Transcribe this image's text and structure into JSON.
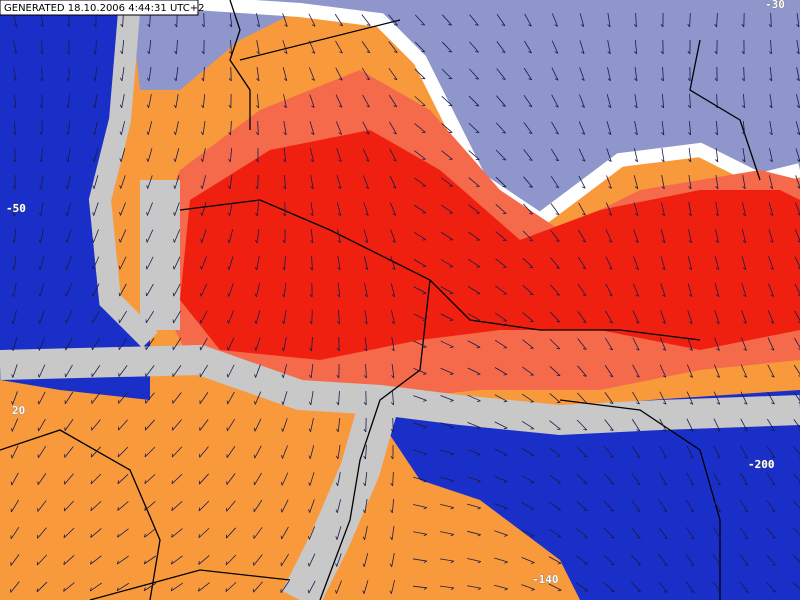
{
  "header": {
    "generated": "GENERATED 18.10.2006 4:44:31 UTC+2"
  },
  "contour_labels": [
    {
      "text": "-30"
    },
    {
      "text": "-50"
    },
    {
      "text": "20"
    },
    {
      "text": "-140"
    },
    {
      "text": "-200"
    }
  ]
}
